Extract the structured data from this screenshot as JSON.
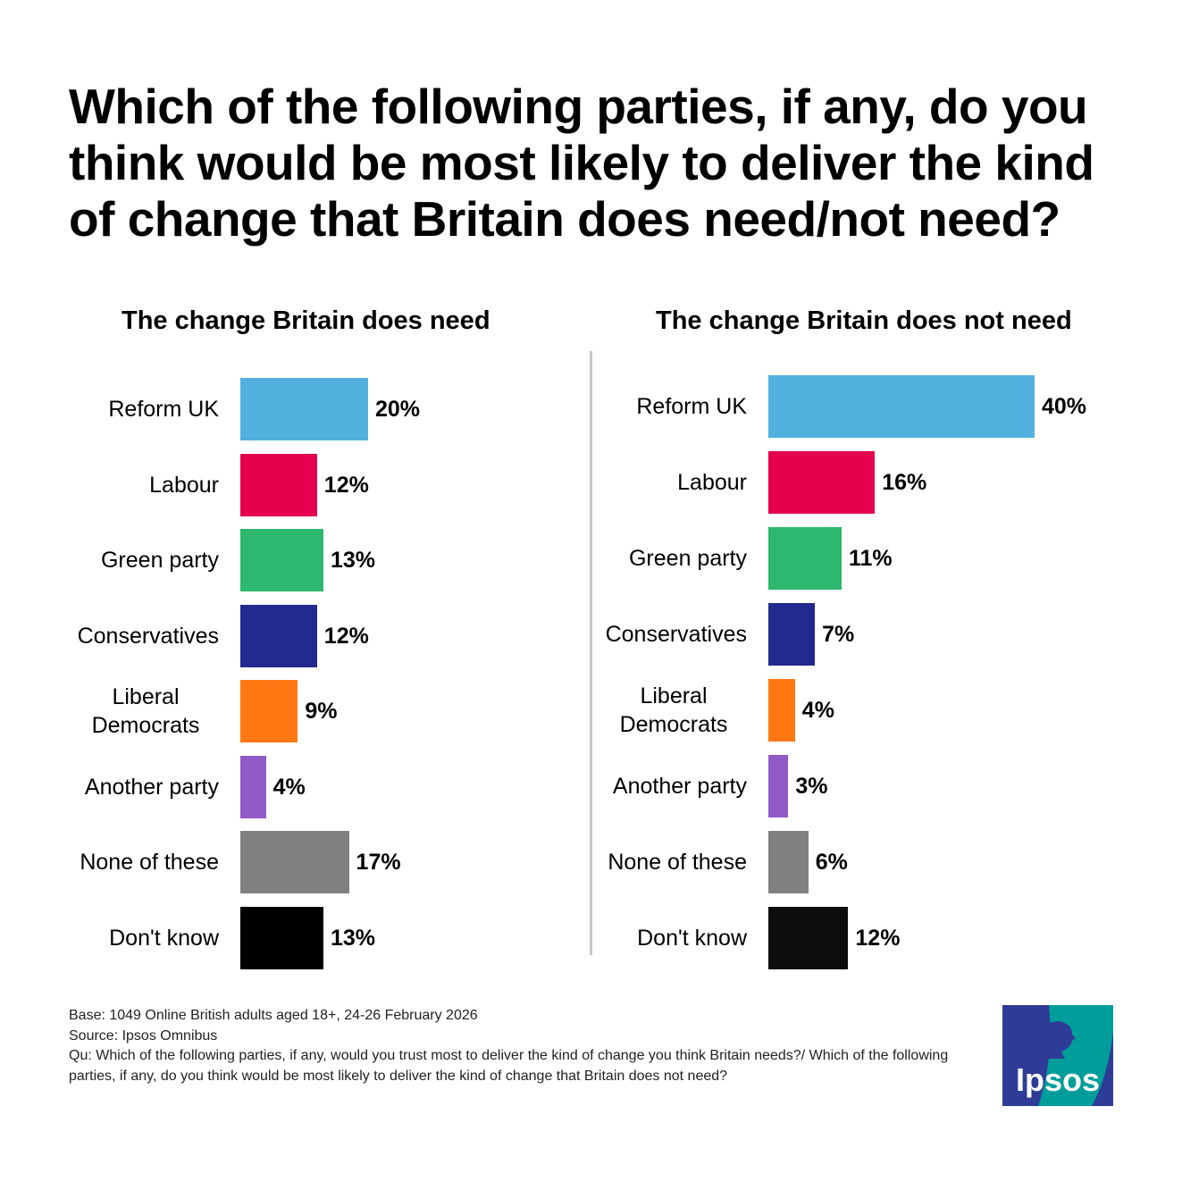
{
  "chart_data": [
    {
      "type": "bar",
      "orientation": "horizontal",
      "title": "The change Britain does need",
      "title_color": "#138781",
      "categories": [
        "Reform UK",
        "Labour",
        "Green party",
        "Conservatives",
        "Liberal Democrats",
        "Another party",
        "None of these",
        "Don't know"
      ],
      "values": [
        20,
        12,
        13,
        12,
        9,
        4,
        17,
        13
      ],
      "labels": [
        "20%",
        "12%",
        "13%",
        "12%",
        "9%",
        "4%",
        "17%",
        "13%"
      ],
      "colors": [
        "#52b0de",
        "#e4004f",
        "#2db76f",
        "#232a8f",
        "#ff7814",
        "#915ac8",
        "#808080",
        "#000000"
      ],
      "xlim": [
        0,
        40
      ]
    },
    {
      "type": "bar",
      "orientation": "horizontal",
      "title": "The change Britain does not need",
      "title_color": "#e4004f",
      "categories": [
        "Reform UK",
        "Labour",
        "Green party",
        "Conservatives",
        "Liberal Democrats",
        "Another party",
        "None of these",
        "Don't know"
      ],
      "values": [
        40,
        16,
        11,
        7,
        4,
        3,
        6,
        12
      ],
      "labels": [
        "40%",
        "16%",
        "11%",
        "7%",
        "4%",
        "3%",
        "6%",
        "12%"
      ],
      "colors": [
        "#52b0de",
        "#e4004f",
        "#2db76f",
        "#232a8f",
        "#ff7814",
        "#915ac8",
        "#808080",
        "#0d0d0d"
      ],
      "xlim": [
        0,
        40
      ]
    }
  ],
  "title": "Which of the following parties, if any, do you think would be most likely to deliver the kind of change that Britain does need/not need?",
  "footer": {
    "base": "Base: 1049 Online British adults aged 18+,  24-26 February 2026",
    "source": "Source: Ipsos Omnibus",
    "question": "Qu: Which of the following parties, if any, would you trust most to deliver the kind of change you think Britain needs?/ Which of the following parties, if any, do you think would be most likely to deliver the kind of change that Britain does not need?"
  },
  "logo": {
    "text": "Ipsos",
    "colors": [
      "#2e3c97",
      "#009d9a"
    ]
  }
}
